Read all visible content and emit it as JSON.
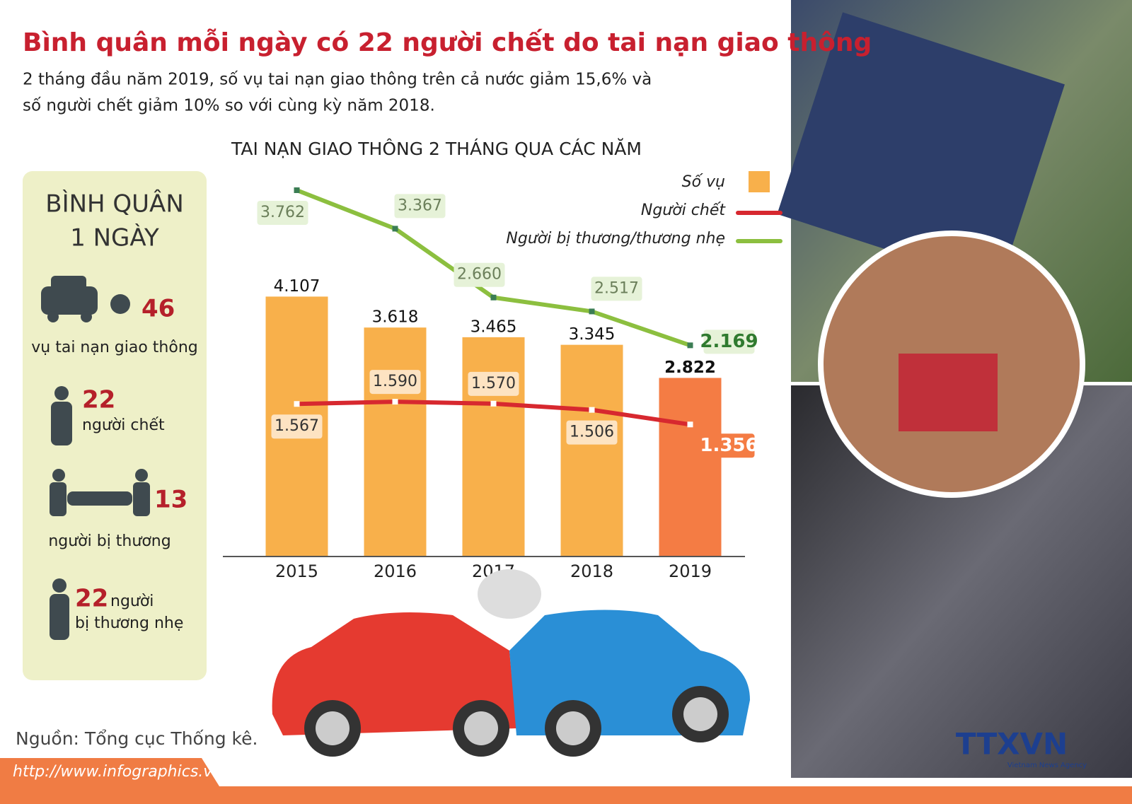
{
  "header": {
    "title": "Bình quân mỗi ngày có 22 người chết do tai nạn giao thông",
    "subtitle": [
      "2 tháng đầu năm 2019, số vụ tai nạn giao thông trên cả nước giảm 15,6% và",
      "số người chết giảm 10% so với cùng kỳ năm 2018."
    ]
  },
  "sidebar": {
    "title": [
      "BÌNH QUÂN",
      "1 NGÀY"
    ],
    "items": [
      {
        "value": "46",
        "label": [
          "vụ tai nạn giao thông"
        ]
      },
      {
        "value": "22",
        "label": [
          "người chết"
        ]
      },
      {
        "value": "13",
        "label": [
          "người bị thương"
        ]
      },
      {
        "value": "22",
        "label": [
          "người",
          "bị thương nhẹ"
        ]
      }
    ]
  },
  "source": "Nguồn: Tổng cục Thống kê.",
  "url": "http://www.infographics.vn",
  "logo": {
    "name": "TTXVN",
    "caption": "Vietnam News Agency"
  },
  "chart_data": {
    "type": "bar",
    "title": "TAI NẠN GIAO THÔNG 2 THÁNG QUA CÁC NĂM",
    "categories": [
      "2015",
      "2016",
      "2017",
      "2018",
      "2019"
    ],
    "ylim": [
      0,
      6000
    ],
    "y2lim": [
      0,
      3900
    ],
    "legend": "top-right",
    "series": [
      {
        "name": "Số vụ",
        "type": "bar",
        "color": "#f8b04b",
        "colors": [
          "#f8b04b",
          "#f8b04b",
          "#f8b04b",
          "#f8b04b",
          "#f47c44"
        ],
        "values": [
          4107,
          3618,
          3465,
          3345,
          2822
        ],
        "value_labels": [
          "4.107",
          "3.618",
          "3.465",
          "3.345",
          "2.822"
        ]
      },
      {
        "name": "Người chết",
        "type": "line",
        "axis": "y2",
        "color": "#d7282f",
        "values": [
          1567,
          1590,
          1570,
          1506,
          1356
        ],
        "value_labels": [
          "1.567",
          "1.590",
          "1.570",
          "1.506",
          "1.356"
        ]
      },
      {
        "name": "Người bị thương/thương nhẹ",
        "type": "line",
        "axis": "y2",
        "color": "#8cbf3f",
        "values": [
          3762,
          3367,
          2660,
          2517,
          2169
        ],
        "value_labels": [
          "3.762",
          "3.367",
          "2.660",
          "2.517",
          "2.169"
        ]
      }
    ]
  }
}
